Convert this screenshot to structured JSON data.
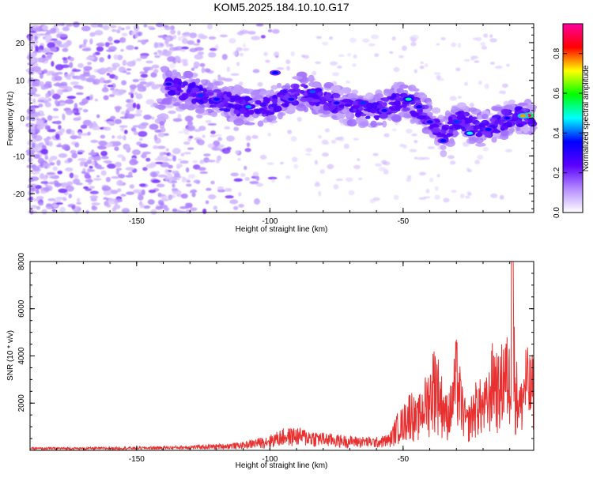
{
  "figure": {
    "title": "KOM5.2025.184.10.10.G17"
  },
  "chart_data": [
    {
      "type": "heatmap",
      "title": "KOM5.2025.184.10.10.G17",
      "xlabel": "Height of straight line (km)",
      "ylabel": "Frequency (Hz)",
      "xlim": [
        -190,
        -1
      ],
      "ylim": [
        -25,
        25
      ],
      "xticks": [
        -150,
        -100,
        -50
      ],
      "xtick_labels": [
        "-150",
        "-100",
        "-50"
      ],
      "yticks": [
        -20,
        -10,
        0,
        10,
        20
      ],
      "ytick_labels": [
        "-20",
        "-10",
        "0",
        "10",
        "20"
      ],
      "colorbar": {
        "label": "Normalized spectral amplitude",
        "range": [
          0,
          0.95
        ],
        "ticks": [
          0,
          0.2,
          0.4,
          0.6,
          0.8
        ],
        "tick_labels": [
          "0.0",
          "0.2",
          "0.4",
          "0.6",
          "0.8"
        ],
        "colormap": [
          "#ffffff",
          "#b48cff",
          "#5a00ff",
          "#0000ff",
          "#00ffff",
          "#00ff00",
          "#ffff00",
          "#ff0000",
          "#ff00a0"
        ]
      },
      "ridge_trend": {
        "x": [
          -140,
          -130,
          -120,
          -110,
          -100,
          -95,
          -88,
          -80,
          -70,
          -60,
          -50,
          -45,
          -40,
          -35,
          -30,
          -20,
          -10,
          -2
        ],
        "frequency": [
          9,
          7,
          5,
          3,
          3,
          5,
          7,
          5,
          3,
          2,
          5,
          3,
          0,
          -5,
          0,
          -3,
          0,
          0.5
        ]
      },
      "grid": false
    },
    {
      "type": "line",
      "xlabel": "Height of straight line (km)",
      "ylabel": "SNR (10 * v/v)",
      "xlim": [
        -190,
        -1
      ],
      "ylim": [
        0,
        8000
      ],
      "xticks": [
        -150,
        -100,
        -50
      ],
      "xtick_labels": [
        "-150",
        "-100",
        "-50"
      ],
      "yticks": [
        2000,
        4000,
        6000,
        8000
      ],
      "ytick_labels": [
        "2000",
        "4000",
        "6000",
        "8000"
      ],
      "color": "#e83030",
      "series": [
        {
          "x": [
            -190,
            -180,
            -170,
            -160,
            -150,
            -140,
            -130,
            -120,
            -110,
            -100,
            -95,
            -90,
            -85,
            -80,
            -75,
            -70,
            -65,
            -60,
            -55,
            -52,
            -50,
            -47,
            -45,
            -42,
            -40,
            -38,
            -36,
            -34,
            -32,
            -30,
            -28,
            -26,
            -24,
            -22,
            -20,
            -18,
            -16,
            -14,
            -12,
            -10,
            -9,
            -8,
            -6,
            -4,
            -2,
            -1
          ],
          "values": [
            110,
            120,
            115,
            130,
            140,
            160,
            190,
            240,
            320,
            600,
            850,
            900,
            800,
            700,
            620,
            560,
            540,
            500,
            650,
            1500,
            1700,
            2500,
            1800,
            2800,
            3300,
            4400,
            3200,
            2200,
            2600,
            4500,
            2700,
            1600,
            2300,
            2900,
            2600,
            3000,
            4600,
            3500,
            4800,
            4200,
            8000,
            4000,
            2600,
            4200,
            3600,
            3900
          ]
        }
      ],
      "grid": false
    }
  ]
}
